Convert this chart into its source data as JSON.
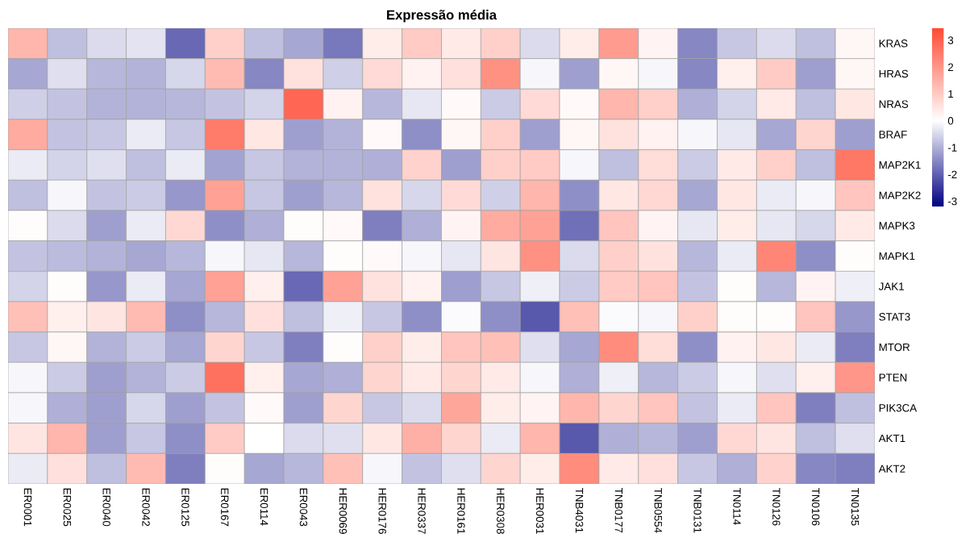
{
  "chart_data": {
    "type": "heatmap",
    "title": "Expressão média",
    "categories": [
      "ER0001",
      "ER0025",
      "ER0040",
      "ER0042",
      "ER0125",
      "ER0167",
      "ER0114",
      "ER0043",
      "HER0069",
      "HER0176",
      "HER0337",
      "HER0161",
      "HER0308",
      "HER0031",
      "TNB4031",
      "TNB0177",
      "TNB0554",
      "TNB0131",
      "TN0114",
      "TN0126",
      "TN0106",
      "TN0135"
    ],
    "y_categories": [
      "KRAS",
      "HRAS",
      "NRAS",
      "BRAF",
      "MAP2K1",
      "MAP2K2",
      "MAPK3",
      "MAPK1",
      "JAK1",
      "STAT3",
      "MTOR",
      "PTEN",
      "PIK3CA",
      "AKT1",
      "AKT2"
    ],
    "cells": [
      [
        1.4,
        -0.8,
        -0.45,
        -0.35,
        -1.9,
        0.9,
        -0.8,
        -1.1,
        -1.7,
        0.35,
        1.0,
        0.4,
        0.9,
        -0.45,
        0.35,
        1.9,
        0.2,
        -1.5,
        -0.7,
        -0.45,
        -0.8,
        0.15
      ],
      [
        -1.1,
        -0.4,
        -0.9,
        -0.95,
        -0.5,
        1.3,
        -1.5,
        0.55,
        -0.6,
        0.7,
        0.25,
        0.6,
        2.1,
        -0.1,
        -1.2,
        0.15,
        -0.1,
        -1.5,
        0.3,
        1.0,
        -1.2,
        0.15
      ],
      [
        -0.6,
        -0.75,
        -0.95,
        -0.95,
        -0.9,
        -0.75,
        -0.55,
        2.9,
        0.25,
        -0.9,
        -0.3,
        0.1,
        -0.65,
        0.7,
        0.1,
        1.4,
        0.9,
        -1.0,
        -0.55,
        0.4,
        -0.8,
        0.45
      ],
      [
        1.6,
        -0.75,
        -0.7,
        -0.25,
        -0.7,
        2.5,
        0.45,
        -1.2,
        -0.95,
        0.1,
        -1.4,
        0.15,
        0.9,
        -1.2,
        0.15,
        0.55,
        0.25,
        -0.1,
        -0.3,
        -1.1,
        0.8,
        -1.2
      ],
      [
        -0.25,
        -0.55,
        -0.4,
        -0.8,
        -0.25,
        -1.15,
        -0.7,
        -0.95,
        -0.95,
        -1.0,
        0.85,
        -1.2,
        0.9,
        1.0,
        -0.1,
        -0.8,
        0.65,
        -0.65,
        0.4,
        0.9,
        -0.8,
        2.6
      ],
      [
        -0.8,
        -0.1,
        -0.75,
        -0.65,
        -1.3,
        1.8,
        -0.7,
        -1.2,
        -0.9,
        0.55,
        -0.5,
        0.7,
        -0.6,
        1.4,
        -1.4,
        0.45,
        0.75,
        -1.1,
        0.45,
        -0.25,
        -0.1,
        1.1
      ],
      [
        0.05,
        -0.45,
        -1.2,
        -0.25,
        0.75,
        -1.4,
        -1.0,
        0.05,
        0.1,
        -1.6,
        -1.0,
        0.2,
        1.6,
        1.8,
        -1.8,
        1.1,
        0.2,
        -0.3,
        0.35,
        -0.3,
        -0.5,
        0.4
      ],
      [
        -0.75,
        -0.85,
        -0.95,
        -1.1,
        -0.9,
        -0.1,
        -0.3,
        -0.9,
        0.05,
        0.1,
        -0.1,
        -0.3,
        0.5,
        2.1,
        -0.45,
        0.9,
        0.55,
        -0.9,
        -0.25,
        2.3,
        -1.4,
        0.05
      ],
      [
        -0.55,
        0.05,
        -1.3,
        -0.25,
        -1.1,
        1.8,
        0.3,
        -1.9,
        1.8,
        0.55,
        0.25,
        -1.2,
        -0.7,
        -0.2,
        -0.65,
        1.0,
        1.1,
        -0.75,
        0.05,
        -0.9,
        0.2,
        -0.2
      ],
      [
        1.2,
        0.3,
        0.5,
        1.3,
        -1.4,
        -0.9,
        0.6,
        -0.8,
        -0.2,
        -0.7,
        -1.4,
        -0.05,
        -1.4,
        -2.1,
        1.2,
        -0.05,
        -0.1,
        0.9,
        0.05,
        0.05,
        1.1,
        -1.3
      ],
      [
        -0.7,
        0.15,
        -0.95,
        -0.65,
        -1.1,
        0.8,
        -0.7,
        -1.6,
        0.05,
        0.9,
        0.35,
        1.1,
        1.2,
        -0.4,
        -1.1,
        2.2,
        0.65,
        -1.4,
        0.25,
        0.45,
        -0.25,
        -1.6
      ],
      [
        -0.1,
        -0.65,
        -1.2,
        -0.95,
        -0.65,
        2.7,
        0.3,
        -1.1,
        -1.0,
        0.8,
        0.4,
        0.8,
        0.4,
        -0.1,
        -1.0,
        -0.2,
        -0.9,
        -0.65,
        -0.1,
        -0.4,
        0.3,
        2.0
      ],
      [
        -0.1,
        -1.0,
        -1.2,
        -0.5,
        -1.2,
        -0.75,
        0.1,
        -1.2,
        0.8,
        -0.7,
        -0.45,
        1.7,
        0.35,
        0.2,
        1.4,
        0.8,
        1.1,
        -0.75,
        -0.25,
        1.1,
        -1.6,
        -0.8
      ],
      [
        0.5,
        1.4,
        -1.2,
        -0.7,
        -1.4,
        1.0,
        0.0,
        -0.45,
        -0.4,
        0.45,
        1.5,
        0.8,
        -0.25,
        1.4,
        -2.1,
        -1.0,
        -0.9,
        -1.2,
        0.75,
        0.5,
        -0.8,
        -0.4
      ],
      [
        -0.25,
        0.6,
        -0.8,
        1.3,
        -1.6,
        0.05,
        -1.1,
        -0.9,
        1.2,
        -0.1,
        -0.75,
        -0.4,
        0.8,
        0.35,
        2.2,
        0.4,
        0.6,
        -0.7,
        -1.0,
        0.85,
        -1.5,
        -1.6
      ]
    ],
    "clim": [
      -3.2,
      3.45
    ],
    "cticks": [
      -3,
      -2,
      -1,
      0,
      1,
      2,
      3
    ]
  }
}
